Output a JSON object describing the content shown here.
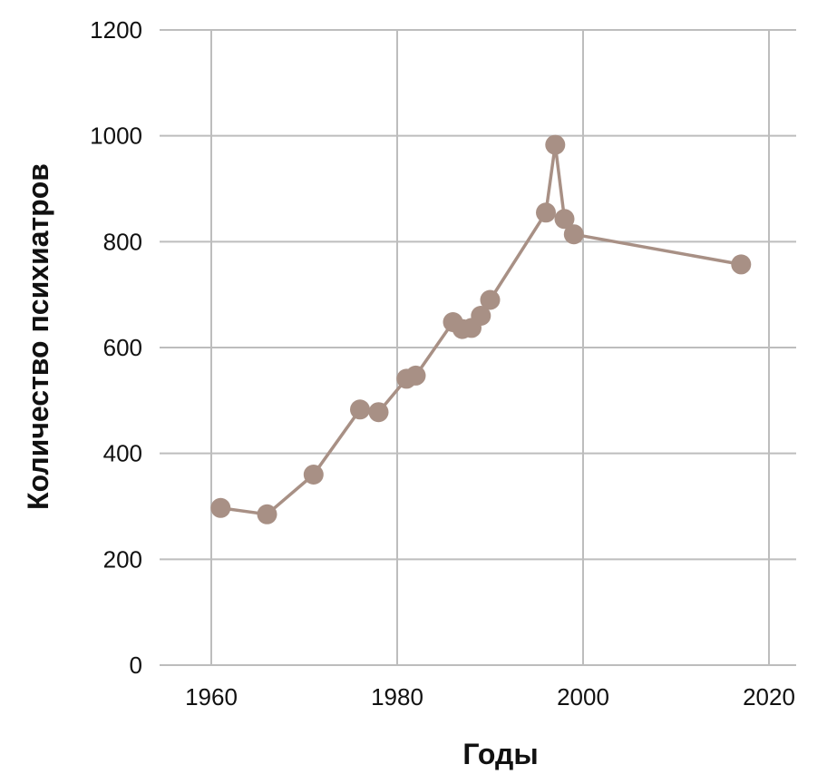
{
  "chart_data": {
    "type": "line",
    "title": "",
    "xlabel": "Годы",
    "ylabel": "Количество психиатров",
    "xlim": [
      1955,
      2021
    ],
    "ylim": [
      0,
      1200
    ],
    "x_ticks": [
      1960,
      1980,
      2000,
      2020
    ],
    "y_ticks": [
      0,
      200,
      400,
      600,
      800,
      1000,
      1200
    ],
    "grid": true,
    "series": [
      {
        "color": "#a89085",
        "x": [
          1961,
          1966,
          1971,
          1976,
          1978,
          1981,
          1982,
          1986,
          1987,
          1988,
          1989,
          1990,
          1996,
          1997,
          1998,
          1999,
          2017
        ],
        "y": [
          297,
          285,
          360,
          483,
          478,
          541,
          547,
          648,
          635,
          637,
          660,
          690,
          855,
          983,
          843,
          814,
          757
        ]
      }
    ]
  }
}
